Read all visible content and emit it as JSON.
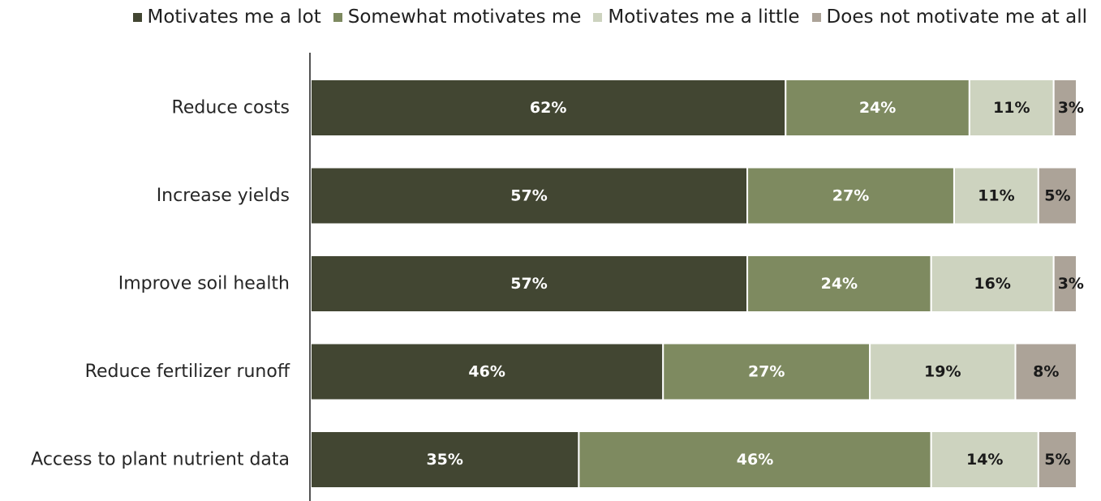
{
  "chart_data": {
    "type": "bar",
    "orientation": "horizontal",
    "stacked": true,
    "percent_stacked": true,
    "title": "",
    "xlabel": "",
    "ylabel": "",
    "legend_position": "top",
    "grid": false,
    "categories": [
      "Reduce costs",
      "Increase yields",
      "Improve soil health",
      "Reduce fertilizer runoff",
      "Access to plant nutrient data"
    ],
    "series": [
      {
        "name": "Motivates me a lot",
        "color": "#424632",
        "label_color": "#ffffff",
        "values": [
          62,
          57,
          57,
          46,
          35
        ],
        "labels": [
          "62%",
          "57%",
          "57%",
          "46%",
          "35%"
        ]
      },
      {
        "name": "Somewhat motivates me",
        "color": "#7e8a60",
        "label_color": "#ffffff",
        "values": [
          24,
          27,
          24,
          27,
          46
        ],
        "labels": [
          "24%",
          "27%",
          "24%",
          "27%",
          "46%"
        ]
      },
      {
        "name": "Motivates me a little",
        "color": "#cdd3bf",
        "label_color": "#1a1a1a",
        "values": [
          11,
          11,
          16,
          19,
          14
        ],
        "labels": [
          "11%",
          "11%",
          "16%",
          "19%",
          "14%"
        ]
      },
      {
        "name": "Does not motivate me at all",
        "color": "#aca398",
        "label_color": "#1a1a1a",
        "values": [
          3,
          5,
          3,
          8,
          5
        ],
        "labels": [
          "3%",
          "5%",
          "3%",
          "8%",
          "5%"
        ]
      }
    ]
  }
}
